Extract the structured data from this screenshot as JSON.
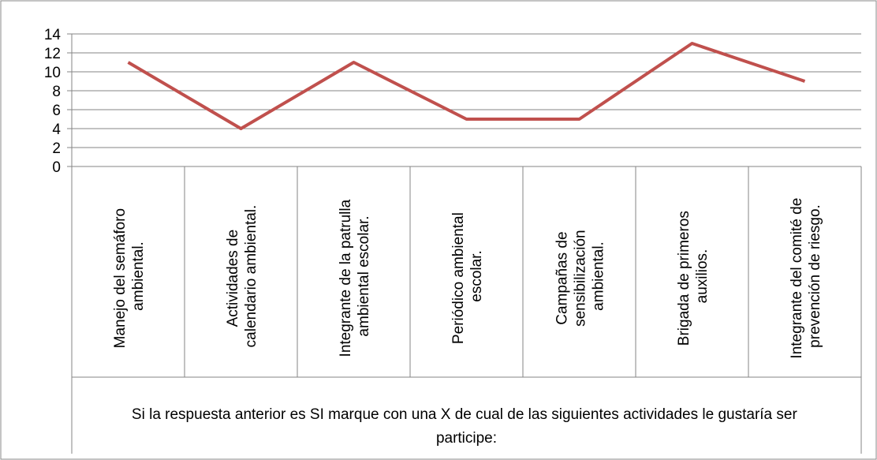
{
  "chart_data": {
    "type": "line",
    "categories": [
      "Manejo del semáforo ambiental.",
      "Actividades de calendario ambiental.",
      "Integrante de la patrulla ambiental escolar.",
      "Periódico ambiental escolar.",
      "Campañas de sensibilización ambiental.",
      "Brigada de primeros auxilios.",
      "Integrante del comité de prevención de riesgo."
    ],
    "values": [
      11,
      4,
      11,
      5,
      5,
      13,
      9
    ],
    "color": "#c0504d",
    "x_label": "Si la respuesta anterior es SI marque con una X de cual de las siguientes actividades le gustaría ser participe:",
    "ylim": [
      0,
      14
    ],
    "yticks": [
      0,
      2,
      4,
      6,
      8,
      10,
      12,
      14
    ],
    "grid": true
  }
}
